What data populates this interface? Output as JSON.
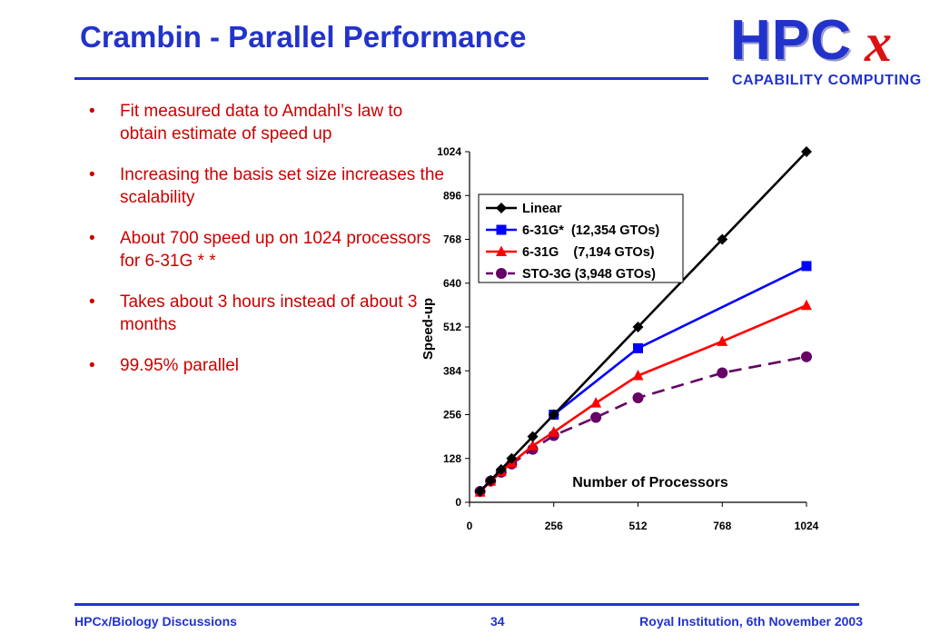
{
  "slide": {
    "title": "Crambin - Parallel Performance",
    "logo": {
      "letters": "HPC",
      "x": "x",
      "subtitle": "CAPABILITY COMPUTING"
    },
    "bullet_marker": "•",
    "bullets": [
      "Fit measured data to Amdahl’s law to obtain estimate of speed up",
      "Increasing the basis set size increases the scalability",
      "About 700 speed up on 1024 processors for 6-31G * *",
      "Takes about 3 hours instead of about 3 months",
      "99.95% parallel"
    ]
  },
  "chart_data": {
    "type": "line",
    "title": "",
    "xlabel": "Number of Processors",
    "ylabel": "Speed-up",
    "xlim": [
      0,
      1024
    ],
    "ylim": [
      0,
      1024
    ],
    "xticks": [
      0,
      256,
      512,
      768,
      1024
    ],
    "yticks": [
      0,
      128,
      256,
      384,
      512,
      640,
      768,
      896,
      1024
    ],
    "legend_position": "top-left",
    "grid": false,
    "series": [
      {
        "name": "Linear",
        "color": "#000000",
        "marker": "diamond",
        "dash": false,
        "x": [
          32,
          64,
          96,
          128,
          192,
          256,
          512,
          768,
          1024
        ],
        "y": [
          32,
          64,
          96,
          128,
          192,
          256,
          512,
          768,
          1024
        ]
      },
      {
        "name": "6-31G*  (12,354 GTOs)",
        "color": "#0000ff",
        "marker": "square",
        "dash": false,
        "x": [
          256,
          512,
          1024
        ],
        "y": [
          256,
          450,
          690
        ]
      },
      {
        "name": "6-31G    (7,194 GTOs)",
        "color": "#ff0000",
        "marker": "triangle",
        "dash": false,
        "x": [
          32,
          64,
          96,
          128,
          192,
          256,
          384,
          512,
          768,
          1024
        ],
        "y": [
          30,
          62,
          90,
          115,
          165,
          205,
          290,
          370,
          470,
          575
        ]
      },
      {
        "name": "STO-3G (3,948 GTOs)",
        "color": "#660066",
        "marker": "circle",
        "dash": true,
        "x": [
          32,
          64,
          96,
          128,
          192,
          256,
          384,
          512,
          768,
          1024
        ],
        "y": [
          32,
          62,
          88,
          112,
          155,
          195,
          248,
          305,
          378,
          425
        ]
      }
    ]
  },
  "footer": {
    "left": "HPCx/Biology Discussions",
    "center": "34",
    "right": "Royal Institution, 6th November 2003"
  }
}
